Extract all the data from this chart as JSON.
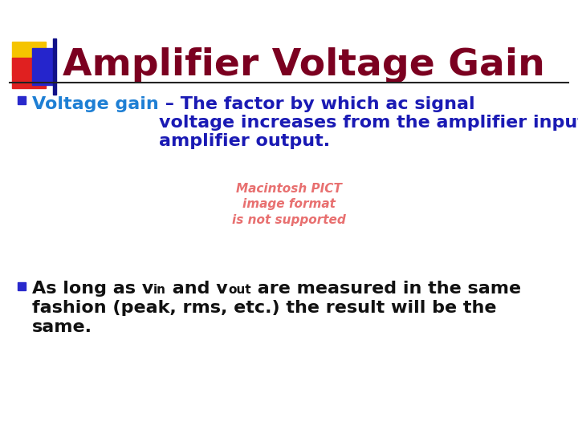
{
  "title": "Amplifier Voltage Gain",
  "title_color": "#7B0020",
  "title_fontsize": 34,
  "background_color": "#FFFFFF",
  "bullet_color": "#2929CC",
  "bullet1_highlight": "Voltage gain",
  "bullet1_highlight_color": "#1E7FD4",
  "bullet1_rest": " – The factor by which ac signal\nvoltage increases from the amplifier input to the\namplifier output.",
  "bullet1_color": "#1A1AB4",
  "bullet1_fontsize": 16,
  "pict_text": "Macintosh PICT\nimage format\nis not supported",
  "pict_color": "#E87070",
  "pict_fontsize": 11,
  "bullet2_color": "#111111",
  "bullet2_fontsize": 16,
  "square_yellow": "#F5C400",
  "square_red": "#E02020",
  "square_blue": "#2525CC",
  "line_color": "#222222",
  "fig_width": 7.2,
  "fig_height": 5.4,
  "dpi": 100
}
